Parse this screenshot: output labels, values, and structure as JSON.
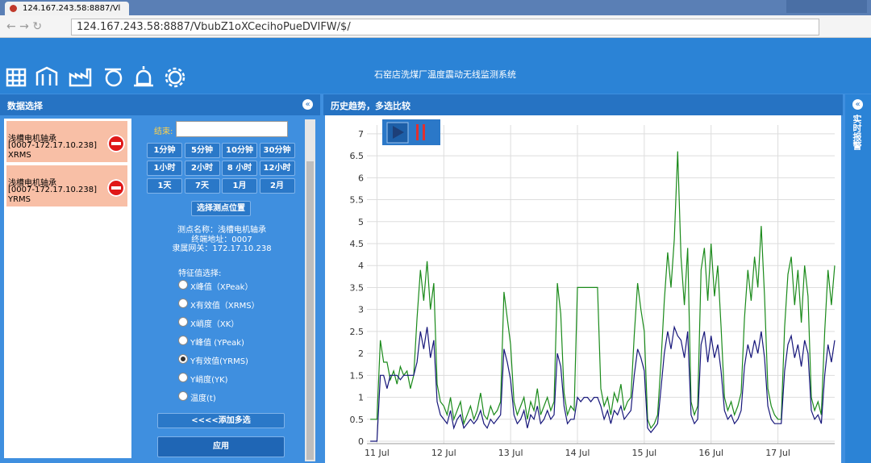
{
  "browser": {
    "tab_title": "124.167.243.58:8887/Vl",
    "url": "124.167.243.58:8887/VbubZ1oXCecihoPueDVIFW/$/"
  },
  "header": {
    "title": "石窑店洗煤厂温度震动无线监测系统"
  },
  "left_panel": {
    "title": "数据选择",
    "selected": [
      {
        "name": "浅槽电机轴承",
        "id": "[0007-172.17.10.238]",
        "feature": "XRMS"
      },
      {
        "name": "浅槽电机轴承",
        "id": "[0007-172.17.10.238]",
        "feature": "YRMS"
      }
    ],
    "end_label": "结束:",
    "time_buttons": [
      "1分钟",
      "5分钟",
      "10分钟",
      "30分钟",
      "1小时",
      "2小时",
      "8 小时",
      "12小时",
      "1天",
      "7天",
      "1月",
      "2月"
    ],
    "select_point_button": "选择测点位置",
    "info": [
      "测点名称：浅槽电机轴承",
      "终端地址：0007",
      "隶属网关：172.17.10.238"
    ],
    "feature_title": "特征值选择:",
    "features": [
      "X峰值（XPeak）",
      "X有效值（XRMS）",
      "X峭度（XK）",
      "Y峰值 (YPeak)",
      "Y有效值(YRMS)",
      "Y峭度(YK)",
      "温度(t)"
    ],
    "selected_feature": 4,
    "add_button": "<<<<添加多选",
    "apply_button": "应用"
  },
  "chart_panel": {
    "title": "历史趋势，多选比较"
  },
  "right_panel": {
    "title": "实时报警"
  },
  "chart_data": {
    "type": "line",
    "grid": true,
    "xlim": [
      10.85,
      17.85
    ],
    "ylim": [
      0,
      7.2
    ],
    "xticks": [
      {
        "value": 11,
        "label": "11 Jul"
      },
      {
        "value": 12,
        "label": "12 Jul"
      },
      {
        "value": 13,
        "label": "13 Jul"
      },
      {
        "value": 14,
        "label": "14 Jul"
      },
      {
        "value": 15,
        "label": "15 Jul"
      },
      {
        "value": 16,
        "label": "16 Jul"
      },
      {
        "value": 17,
        "label": "17 Jul"
      }
    ],
    "yticks": [
      0,
      0.5,
      1,
      1.5,
      2,
      2.5,
      3,
      3.5,
      4,
      4.5,
      5,
      5.5,
      6,
      6.5,
      7
    ],
    "x": [
      10.9,
      10.95,
      11,
      11.05,
      11.1,
      11.15,
      11.2,
      11.25,
      11.3,
      11.35,
      11.4,
      11.45,
      11.5,
      11.55,
      11.6,
      11.65,
      11.7,
      11.75,
      11.8,
      11.85,
      11.9,
      11.95,
      12,
      12.05,
      12.1,
      12.15,
      12.2,
      12.25,
      12.3,
      12.35,
      12.4,
      12.45,
      12.5,
      12.55,
      12.6,
      12.65,
      12.7,
      12.75,
      12.8,
      12.85,
      12.9,
      12.95,
      13,
      13.05,
      13.1,
      13.15,
      13.2,
      13.25,
      13.3,
      13.35,
      13.4,
      13.45,
      13.5,
      13.55,
      13.6,
      13.65,
      13.7,
      13.75,
      13.8,
      13.85,
      13.9,
      13.95,
      14,
      14.05,
      14.1,
      14.15,
      14.2,
      14.25,
      14.3,
      14.35,
      14.4,
      14.45,
      14.5,
      14.55,
      14.6,
      14.65,
      14.7,
      14.75,
      14.8,
      14.85,
      14.9,
      14.95,
      15,
      15.05,
      15.1,
      15.15,
      15.2,
      15.25,
      15.3,
      15.35,
      15.4,
      15.45,
      15.5,
      15.55,
      15.6,
      15.65,
      15.7,
      15.75,
      15.8,
      15.85,
      15.9,
      15.95,
      16,
      16.05,
      16.1,
      16.15,
      16.2,
      16.25,
      16.3,
      16.35,
      16.4,
      16.45,
      16.5,
      16.55,
      16.6,
      16.65,
      16.7,
      16.75,
      16.8,
      16.85,
      16.9,
      16.95,
      17,
      17.05,
      17.1,
      17.15,
      17.2,
      17.25,
      17.3,
      17.35,
      17.4,
      17.45,
      17.5,
      17.55,
      17.6,
      17.65,
      17.7,
      17.75,
      17.8,
      17.85
    ],
    "series": [
      {
        "color": "#1a8a1a",
        "values": [
          0.5,
          0.5,
          0.5,
          2.3,
          1.8,
          1.8,
          1.4,
          1.6,
          1.3,
          1.7,
          1.5,
          1.6,
          1.2,
          1.5,
          2.8,
          3.9,
          3.2,
          4.1,
          3.0,
          3.6,
          1.3,
          0.9,
          0.8,
          0.6,
          1.0,
          0.5,
          0.7,
          0.9,
          0.4,
          0.6,
          0.8,
          0.5,
          0.7,
          1.1,
          0.6,
          0.5,
          0.8,
          0.6,
          0.7,
          0.9,
          3.4,
          2.8,
          2.2,
          0.9,
          0.6,
          0.8,
          1.0,
          0.5,
          0.9,
          0.7,
          1.2,
          0.6,
          0.8,
          1.0,
          0.7,
          0.9,
          3.6,
          2.9,
          1.1,
          0.6,
          0.8,
          0.7,
          3.5,
          3.5,
          3.5,
          3.5,
          3.5,
          3.5,
          3.5,
          1.2,
          0.8,
          1.0,
          0.6,
          1.1,
          0.9,
          1.3,
          0.7,
          0.9,
          1.0,
          2.4,
          3.6,
          3.0,
          2.5,
          0.5,
          0.3,
          0.4,
          0.6,
          1.8,
          3.2,
          4.3,
          3.5,
          4.6,
          6.6,
          4.2,
          3.1,
          4.4,
          0.9,
          0.6,
          0.8,
          3.9,
          4.4,
          3.2,
          4.5,
          3.3,
          4.0,
          2.6,
          1.0,
          0.7,
          0.9,
          0.6,
          0.8,
          1.1,
          2.8,
          3.9,
          3.2,
          4.2,
          3.5,
          4.9,
          3.3,
          1.2,
          0.8,
          0.6,
          0.5,
          0.5,
          2.6,
          3.8,
          4.2,
          3.1,
          3.9,
          2.7,
          4.0,
          3.3,
          1.0,
          0.7,
          0.9,
          0.6,
          2.5,
          3.9,
          3.1,
          4.0
        ]
      },
      {
        "color": "#16167a",
        "values": [
          0,
          0,
          0,
          1.5,
          1.5,
          1.2,
          1.5,
          1.5,
          1.5,
          1.4,
          1.5,
          1.5,
          1.5,
          1.5,
          1.8,
          2.5,
          2.1,
          2.6,
          1.9,
          2.3,
          0.9,
          0.6,
          0.5,
          0.4,
          0.7,
          0.3,
          0.5,
          0.6,
          0.3,
          0.4,
          0.5,
          0.4,
          0.5,
          0.7,
          0.4,
          0.3,
          0.5,
          0.4,
          0.5,
          0.6,
          2.1,
          1.8,
          1.4,
          0.6,
          0.4,
          0.5,
          0.7,
          0.3,
          0.6,
          0.5,
          0.8,
          0.4,
          0.5,
          0.7,
          0.5,
          0.6,
          2.0,
          1.7,
          0.8,
          0.4,
          0.5,
          0.5,
          1.0,
          0.9,
          1.0,
          1.0,
          0.9,
          1.0,
          1.0,
          0.8,
          0.5,
          0.7,
          0.4,
          0.7,
          0.6,
          0.8,
          0.5,
          0.6,
          0.7,
          1.5,
          2.1,
          1.9,
          1.6,
          0.3,
          0.2,
          0.3,
          0.4,
          1.2,
          2.0,
          2.5,
          2.1,
          2.6,
          2.4,
          2.3,
          1.9,
          2.5,
          0.6,
          0.4,
          0.5,
          2.2,
          2.5,
          1.8,
          2.4,
          1.9,
          2.2,
          1.6,
          0.7,
          0.5,
          0.6,
          0.4,
          0.5,
          0.7,
          1.7,
          2.2,
          1.9,
          2.3,
          2.0,
          2.5,
          1.9,
          0.8,
          0.5,
          0.4,
          0.4,
          0.4,
          1.6,
          2.2,
          2.4,
          1.9,
          2.2,
          1.7,
          2.3,
          2.0,
          0.7,
          0.5,
          0.6,
          0.4,
          1.5,
          2.2,
          1.8,
          2.3
        ]
      }
    ]
  }
}
